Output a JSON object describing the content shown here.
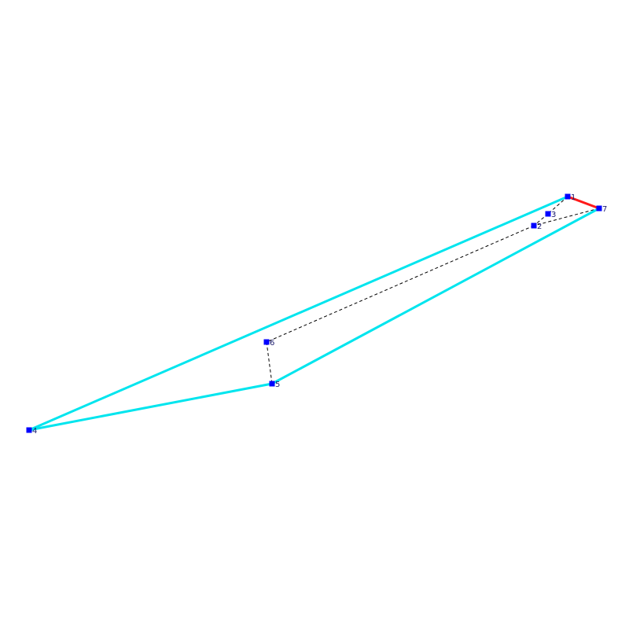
{
  "diagram": {
    "colors": {
      "background": "#ffffff",
      "hull_edge": "#00e5ee",
      "highlight_edge": "#ff1a1a",
      "dashed_edge": "#000000",
      "vertex": "#0000ff",
      "label": "#1a1a6e"
    },
    "vertices": [
      {
        "id": "1",
        "label": "1"
      },
      {
        "id": "2",
        "label": "2"
      },
      {
        "id": "3",
        "label": "3"
      },
      {
        "id": "4",
        "label": "4"
      },
      {
        "id": "5",
        "label": "5"
      },
      {
        "id": "6",
        "label": "6"
      },
      {
        "id": "7",
        "label": "7"
      }
    ],
    "edges": {
      "solid_cyan": [
        [
          "1",
          "4"
        ],
        [
          "4",
          "5"
        ],
        [
          "5",
          "7"
        ]
      ],
      "solid_red": [
        [
          "1",
          "7"
        ]
      ],
      "dashed": [
        [
          "1",
          "3"
        ],
        [
          "3",
          "2"
        ],
        [
          "2",
          "6"
        ],
        [
          "6",
          "5"
        ],
        [
          "4",
          "1"
        ],
        [
          "7",
          "2"
        ]
      ]
    }
  }
}
